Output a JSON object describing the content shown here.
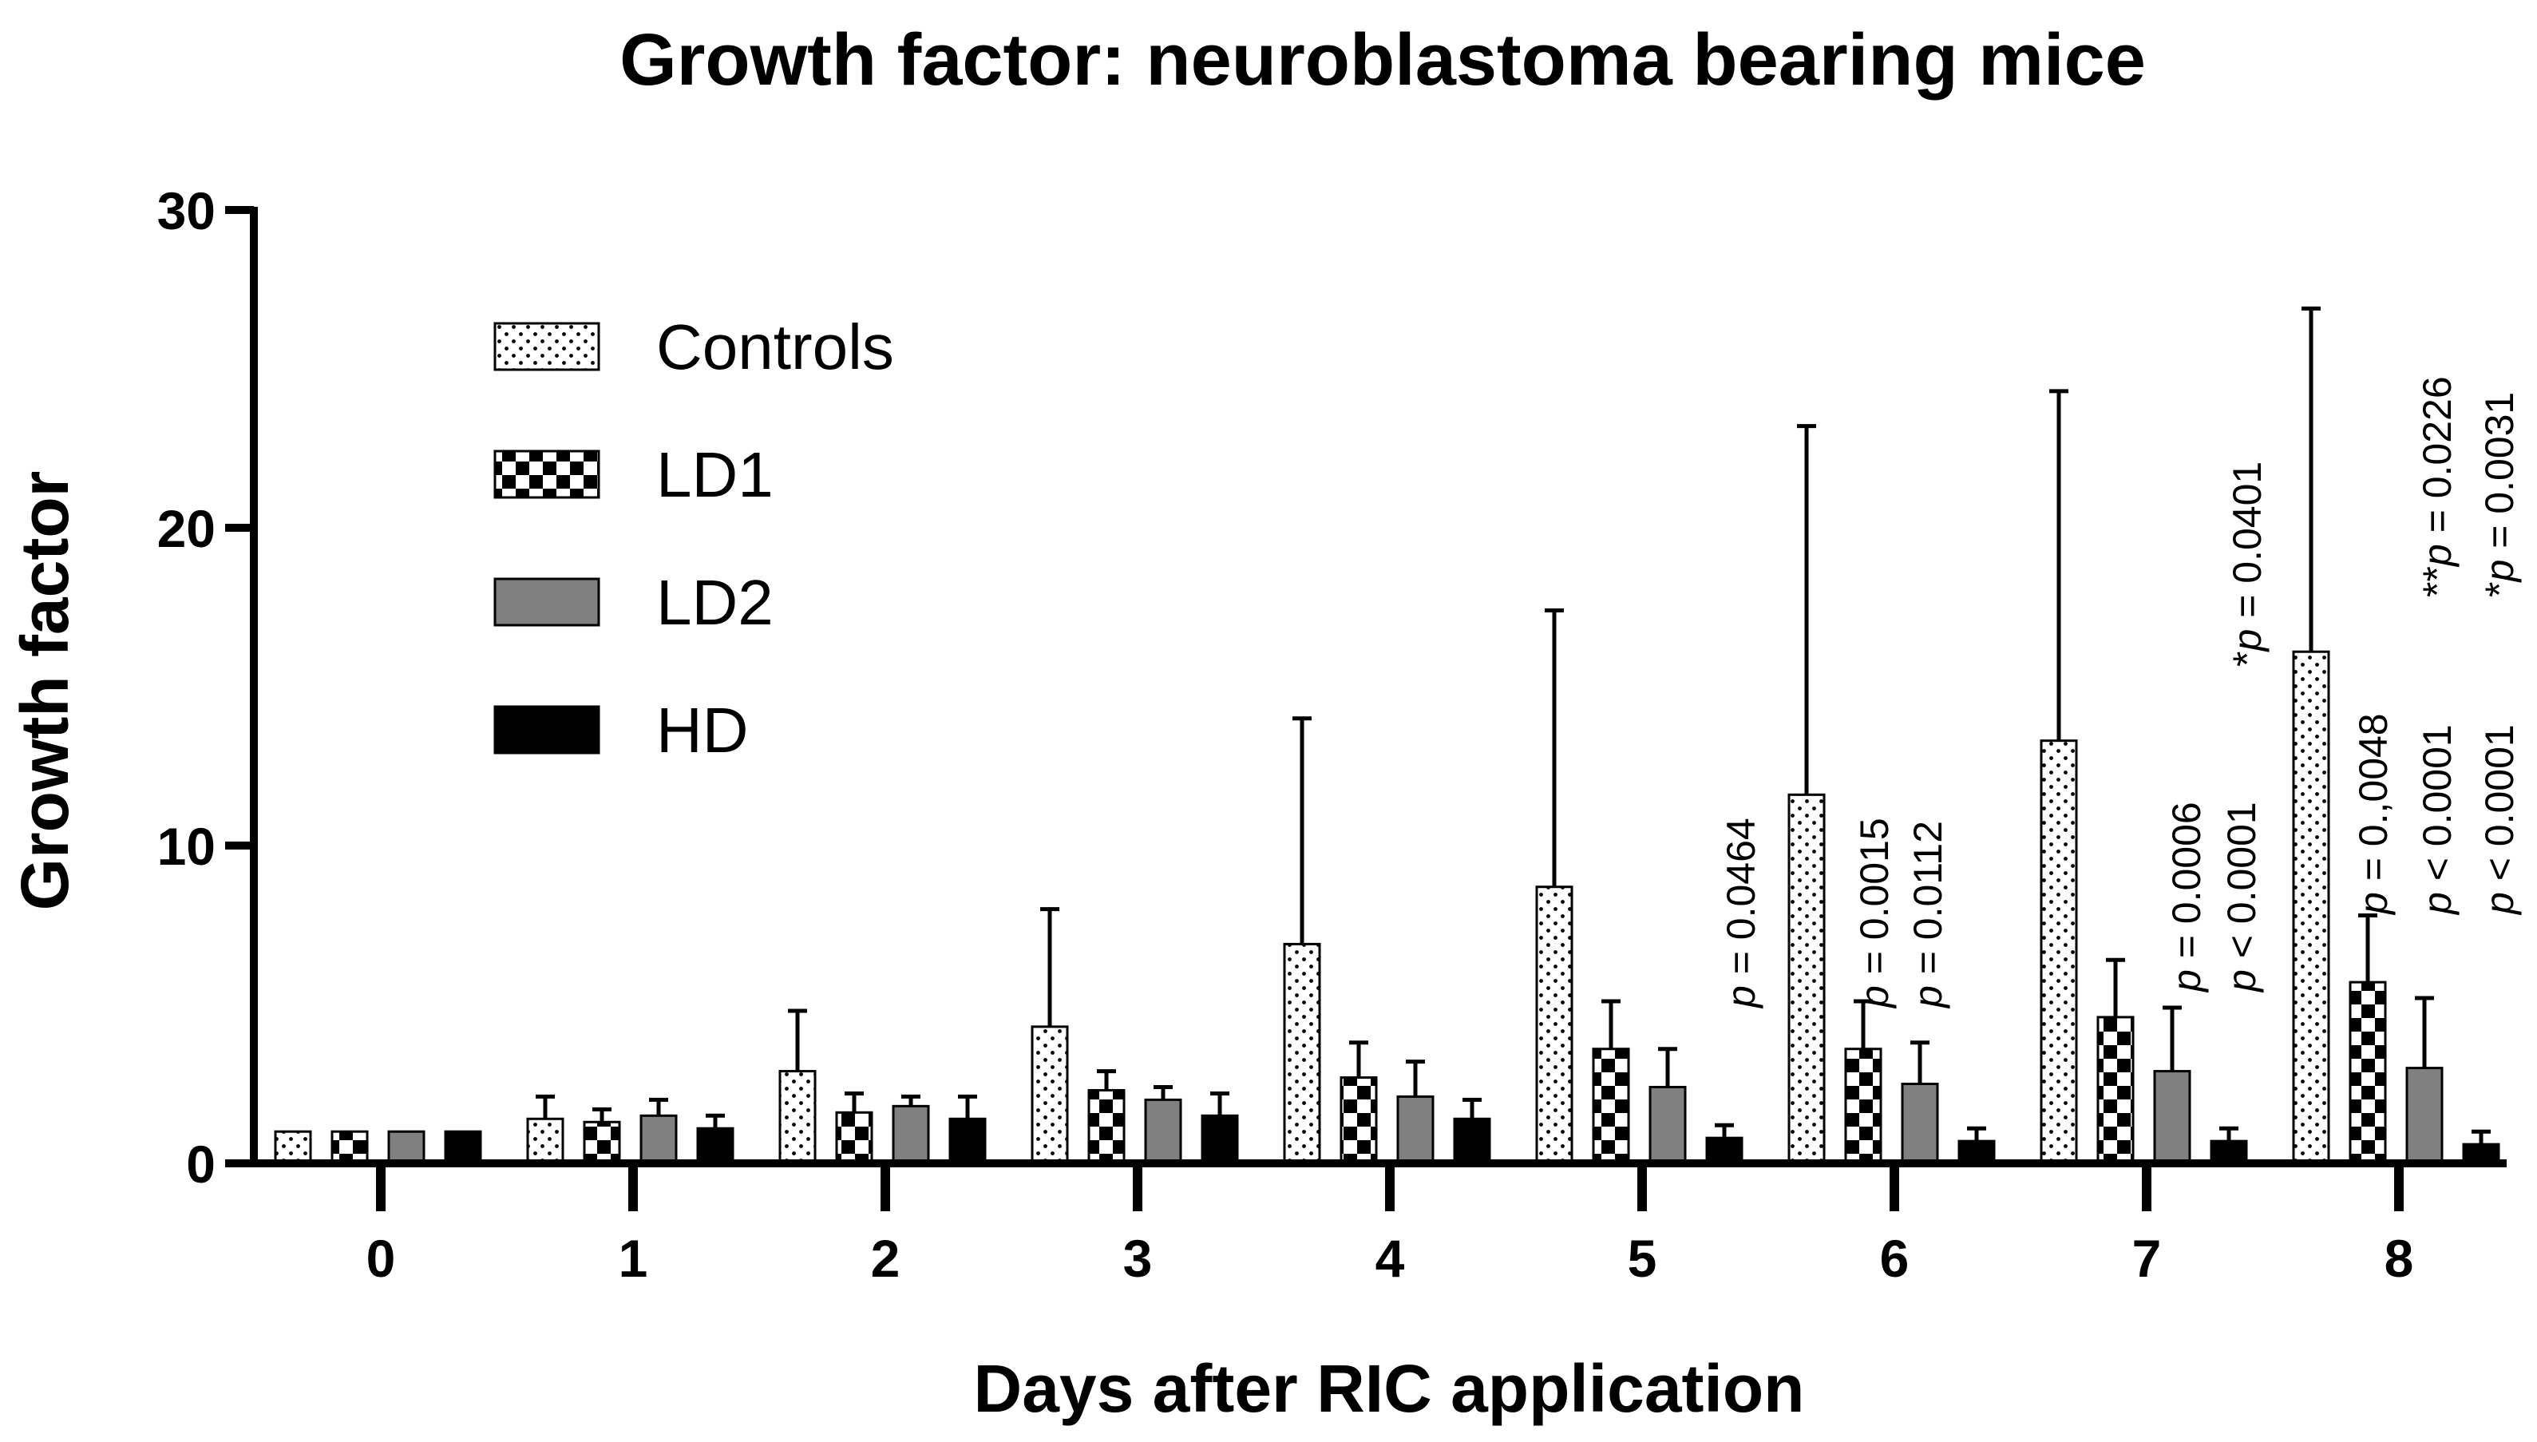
{
  "chart_data": {
    "type": "bar",
    "title": "Growth factor: neuroblastoma bearing mice",
    "xlabel": "Days after RIC application",
    "ylabel": "Growth factor",
    "ylim": [
      0,
      30
    ],
    "yticks": [
      0,
      10,
      20,
      30
    ],
    "categories": [
      "0",
      "1",
      "2",
      "3",
      "4",
      "5",
      "6",
      "7",
      "8"
    ],
    "legend_position": "top-left",
    "series": [
      {
        "name": "Controls",
        "pattern": "dots",
        "values": [
          1.0,
          1.4,
          2.9,
          4.3,
          6.9,
          8.7,
          11.6,
          13.3,
          16.1
        ],
        "error": [
          0,
          0.7,
          1.9,
          3.7,
          7.1,
          8.7,
          11.6,
          11.0,
          10.8
        ]
      },
      {
        "name": "LD1",
        "pattern": "checker",
        "values": [
          1.0,
          1.3,
          1.6,
          2.3,
          2.7,
          3.6,
          3.6,
          4.6,
          5.7
        ],
        "error": [
          0,
          0.4,
          0.6,
          0.6,
          1.1,
          1.5,
          1.5,
          1.8,
          2.1
        ]
      },
      {
        "name": "LD2",
        "pattern": "gray",
        "color": "#808080",
        "values": [
          1.0,
          1.5,
          1.8,
          2.0,
          2.1,
          2.4,
          2.5,
          2.9,
          3.0
        ],
        "error": [
          0,
          0.5,
          0.3,
          0.4,
          1.1,
          1.2,
          1.3,
          2.0,
          2.2
        ]
      },
      {
        "name": "HD",
        "pattern": "black",
        "color": "#000000",
        "values": [
          1.0,
          1.1,
          1.4,
          1.5,
          1.4,
          0.8,
          0.7,
          0.7,
          0.6
        ],
        "error": [
          0,
          0.4,
          0.7,
          0.7,
          0.6,
          0.4,
          0.4,
          0.4,
          0.4
        ]
      }
    ],
    "annotations": [
      {
        "day": "5",
        "lines": [
          {
            "stars": "",
            "p": "p",
            "rest": " =  0.0464"
          }
        ]
      },
      {
        "day": "6",
        "lines": [
          {
            "stars": "",
            "p": "p",
            "rest": " =  0.0015"
          },
          {
            "stars": "",
            "p": "p",
            "rest": " =  0.0112"
          }
        ]
      },
      {
        "day": "7",
        "lines": [
          {
            "stars": "",
            "p": "p",
            "rest": " =  0.0006"
          },
          {
            "stars": "",
            "p": "p",
            "rest": " <  0.0001"
          },
          {
            "stars": "*",
            "p": "p",
            "rest": " =  0.0401"
          }
        ]
      },
      {
        "day": "8",
        "lines": [
          {
            "stars": "",
            "p": "p",
            "rest": " =  0.,0048"
          },
          {
            "stars": "",
            "p": "p",
            "rest": " <  0.0001"
          },
          {
            "stars": "**",
            "p": "p",
            "rest": " = 0.0226"
          },
          {
            "stars": "",
            "p": "p",
            "rest": " <  0.0001"
          },
          {
            "stars": "*",
            "p": "p",
            "rest": " = 0.0031"
          }
        ]
      }
    ]
  }
}
